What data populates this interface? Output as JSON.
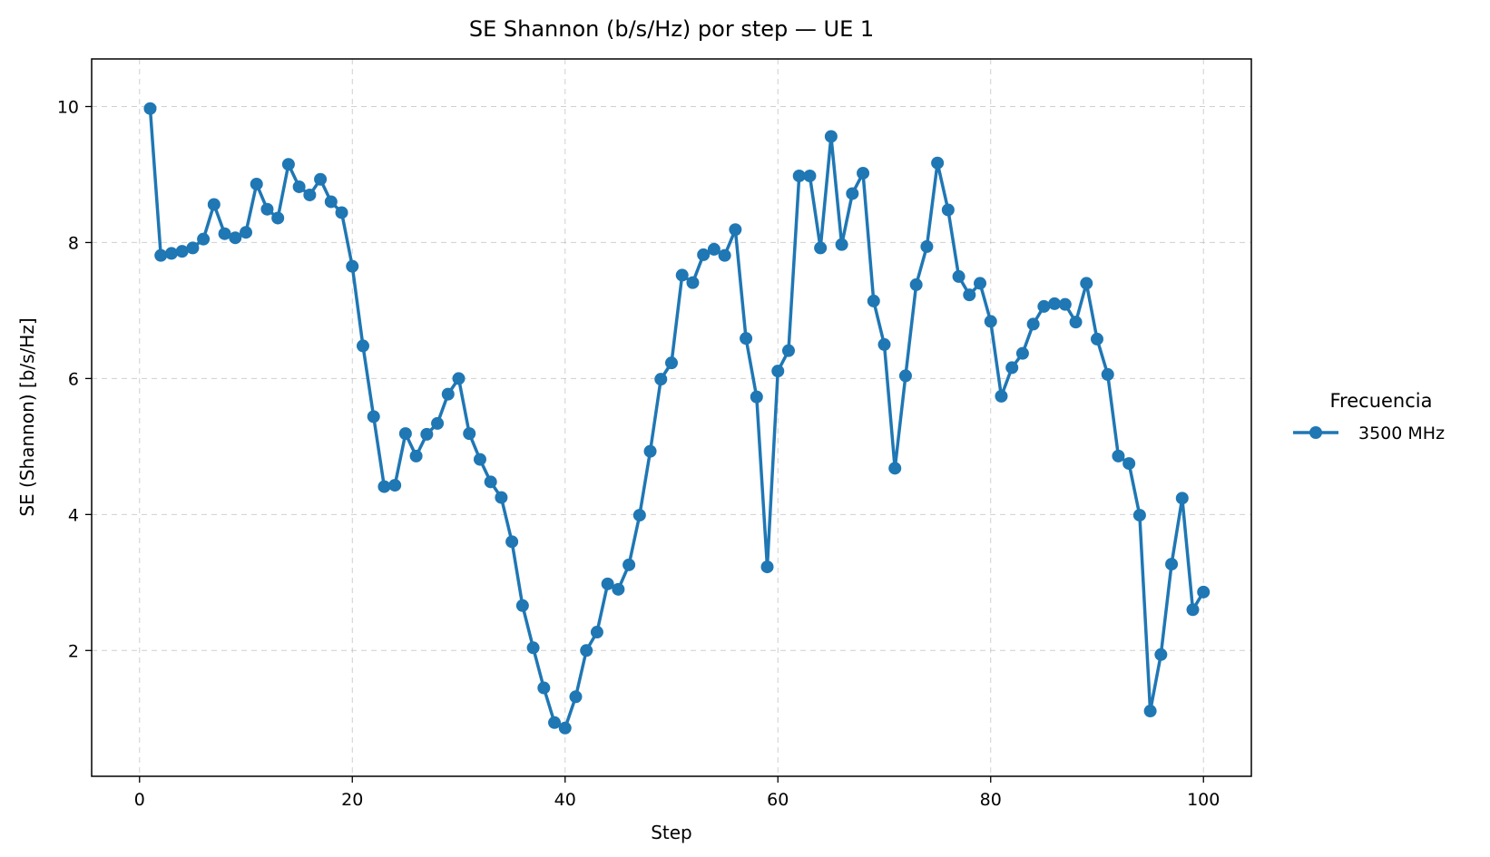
{
  "chart_data": {
    "type": "line",
    "title": "SE Shannon (b/s/Hz) por step — UE 1",
    "xlabel": "Step",
    "ylabel": "SE (Shannon) [b/s/Hz]",
    "xlim": [
      -4.5,
      104.5
    ],
    "ylim": [
      0.15,
      10.7
    ],
    "xticks": [
      0,
      20,
      40,
      60,
      80,
      100
    ],
    "yticks": [
      2,
      4,
      6,
      8,
      10
    ],
    "grid": true,
    "legend": {
      "title": "Frecuencia",
      "placement": "outside-right"
    },
    "series": [
      {
        "name": "3500 MHz",
        "color": "#1f77b4",
        "x": [
          1,
          2,
          3,
          4,
          5,
          6,
          7,
          8,
          9,
          10,
          11,
          12,
          13,
          14,
          15,
          16,
          17,
          18,
          19,
          20,
          21,
          22,
          23,
          24,
          25,
          26,
          27,
          28,
          29,
          30,
          31,
          32,
          33,
          34,
          35,
          36,
          37,
          38,
          39,
          40,
          41,
          42,
          43,
          44,
          45,
          46,
          47,
          48,
          49,
          50,
          51,
          52,
          53,
          54,
          55,
          56,
          57,
          58,
          59,
          60,
          61,
          62,
          63,
          64,
          65,
          66,
          67,
          68,
          69,
          70,
          71,
          72,
          73,
          74,
          75,
          76,
          77,
          78,
          79,
          80,
          81,
          82,
          83,
          84,
          85,
          86,
          87,
          88,
          89,
          90,
          91,
          92,
          93,
          94,
          95,
          96,
          97,
          98,
          99,
          100
        ],
        "y": [
          9.97,
          7.81,
          7.84,
          7.87,
          7.92,
          8.05,
          8.56,
          8.13,
          8.07,
          8.15,
          8.86,
          8.49,
          8.36,
          9.15,
          8.82,
          8.7,
          8.93,
          8.6,
          8.44,
          7.65,
          6.48,
          5.44,
          4.41,
          4.43,
          5.19,
          4.86,
          5.18,
          5.34,
          5.77,
          6.0,
          5.19,
          4.81,
          4.48,
          4.25,
          3.6,
          2.66,
          2.04,
          1.45,
          0.94,
          0.86,
          1.32,
          2.0,
          2.27,
          2.98,
          2.9,
          3.26,
          3.99,
          4.93,
          5.99,
          6.23,
          7.52,
          7.41,
          7.82,
          7.9,
          7.81,
          8.19,
          6.59,
          5.73,
          3.23,
          6.11,
          6.41,
          8.98,
          8.98,
          7.92,
          9.56,
          7.97,
          8.72,
          9.02,
          7.14,
          6.5,
          4.68,
          6.04,
          7.38,
          7.94,
          9.17,
          8.48,
          7.5,
          7.23,
          7.4,
          6.84,
          5.74,
          6.16,
          6.37,
          6.8,
          7.06,
          7.1,
          7.09,
          6.83,
          7.4,
          6.58,
          6.06,
          4.86,
          4.75,
          3.99,
          1.11,
          1.94,
          3.27,
          4.24,
          2.6,
          2.86
        ]
      }
    ]
  }
}
